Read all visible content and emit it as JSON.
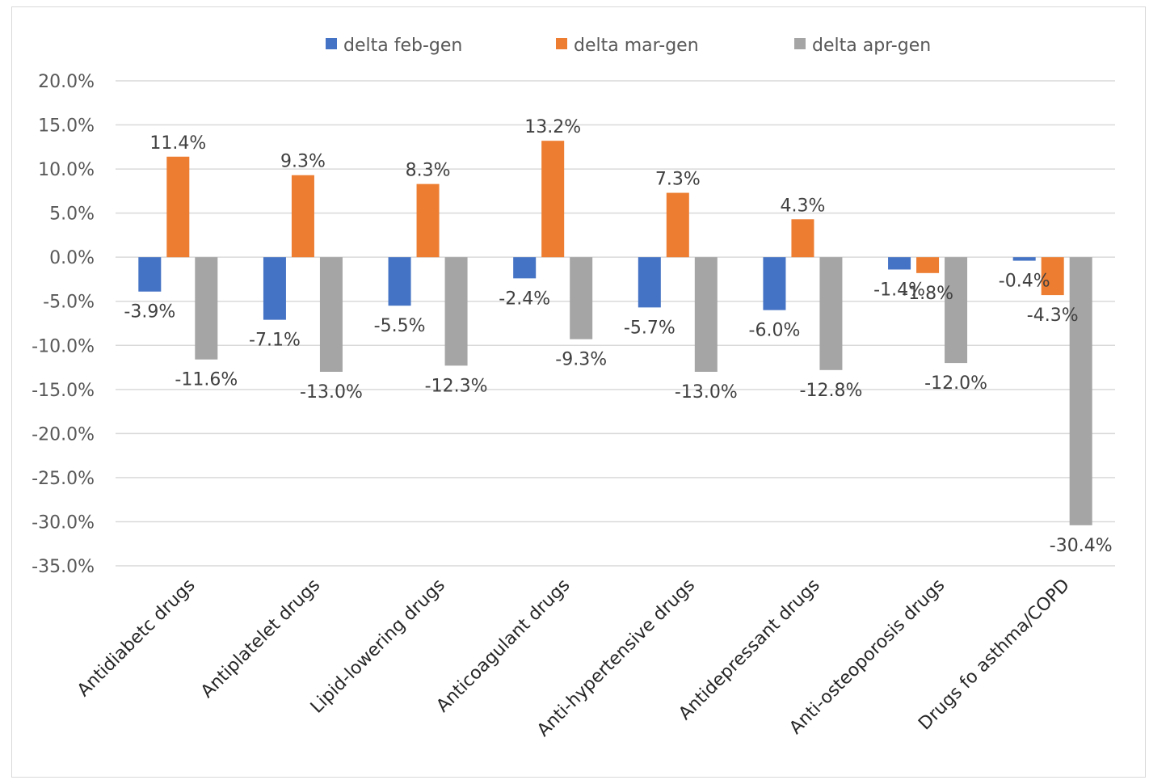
{
  "chart_data": {
    "type": "bar",
    "categories": [
      "Antidiabetc drugs",
      "Antiplatelet drugs",
      "Lipid-lowering drugs",
      "Anticoagulant drugs",
      "Anti-hypertensive drugs",
      "Antidepressant drugs",
      "Anti-osteoporosis drugs",
      "Drugs fo asthma/COPD"
    ],
    "series": [
      {
        "name": "delta feb-gen",
        "color": "#4472c4",
        "values": [
          -3.9,
          -7.1,
          -5.5,
          -2.4,
          -5.7,
          -6.0,
          -1.4,
          -0.4
        ],
        "labels": [
          "-3.9%",
          "-7.1%",
          "-5.5%",
          "-2.4%",
          "-5.7%",
          "-6.0%",
          "-1.4%",
          "-0.4%"
        ]
      },
      {
        "name": "delta mar-gen",
        "color": "#ed7d31",
        "values": [
          11.4,
          9.3,
          8.3,
          13.2,
          7.3,
          4.3,
          -1.8,
          -4.3
        ],
        "labels": [
          "11.4%",
          "9.3%",
          "8.3%",
          "13.2%",
          "7.3%",
          "4.3%",
          "-1.8%",
          "-4.3%"
        ]
      },
      {
        "name": "delta apr-gen",
        "color": "#a5a5a5",
        "values": [
          -11.6,
          -13.0,
          -12.3,
          -9.3,
          -13.0,
          -12.8,
          -12.0,
          -30.4
        ],
        "labels": [
          "-11.6%",
          "-13.0%",
          "-12.3%",
          "-9.3%",
          "-13.0%",
          "-12.8%",
          "-12.0%",
          "-30.4%"
        ]
      }
    ],
    "yticks": [
      20,
      15,
      10,
      5,
      0,
      -5,
      -10,
      -15,
      -20,
      -25,
      -30,
      -35
    ],
    "ytick_labels": [
      "20.0%",
      "15.0%",
      "10.0%",
      "5.0%",
      "0.0%",
      "-5.0%",
      "-10.0%",
      "-15.0%",
      "-20.0%",
      "-25.0%",
      "-30.0%",
      "-35.0%"
    ],
    "ylim": [
      -35,
      20
    ],
    "grid": true,
    "legend": "top-center",
    "title": "",
    "xlabel": "",
    "ylabel": ""
  }
}
